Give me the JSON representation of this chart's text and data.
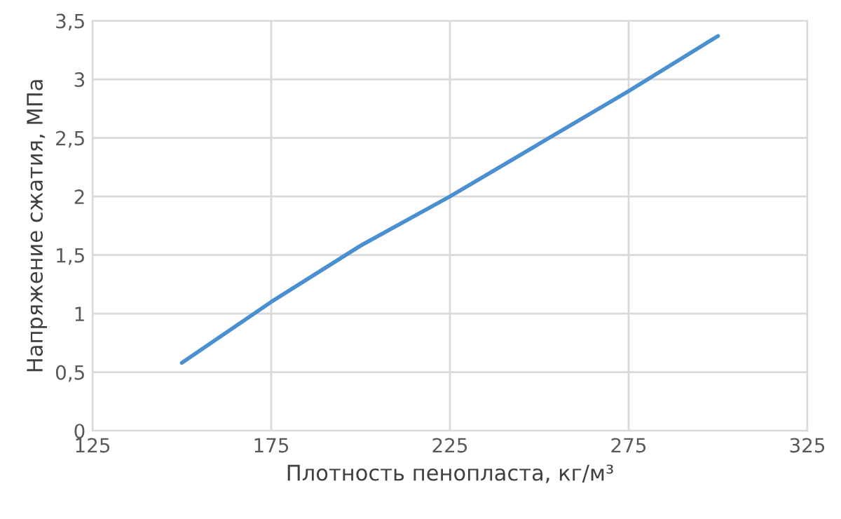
{
  "chart_data": {
    "type": "line",
    "xlabel": "Плотность пенопласта, кг/м³",
    "ylabel": "Напряжение сжатия, МПа",
    "x": [
      150,
      175,
      200,
      225,
      250,
      275,
      300
    ],
    "series": [
      {
        "color": "#4a8fcf",
        "values": [
          0.58,
          1.1,
          1.58,
          2.0,
          2.45,
          2.9,
          3.37
        ]
      }
    ],
    "xlim": [
      125,
      325
    ],
    "xticks": [
      125,
      175,
      225,
      275,
      325
    ],
    "ylim": [
      0,
      3.5
    ],
    "yticks": [
      0,
      {
        "value": 0.5,
        "label": "0,5"
      },
      1,
      {
        "value": 1.5,
        "label": "1,5"
      },
      2,
      {
        "value": 2.5,
        "label": "2,5"
      },
      3,
      {
        "value": 3.5,
        "label": "3,5"
      }
    ],
    "grid": true,
    "marker": "none",
    "line_style": "solid"
  }
}
